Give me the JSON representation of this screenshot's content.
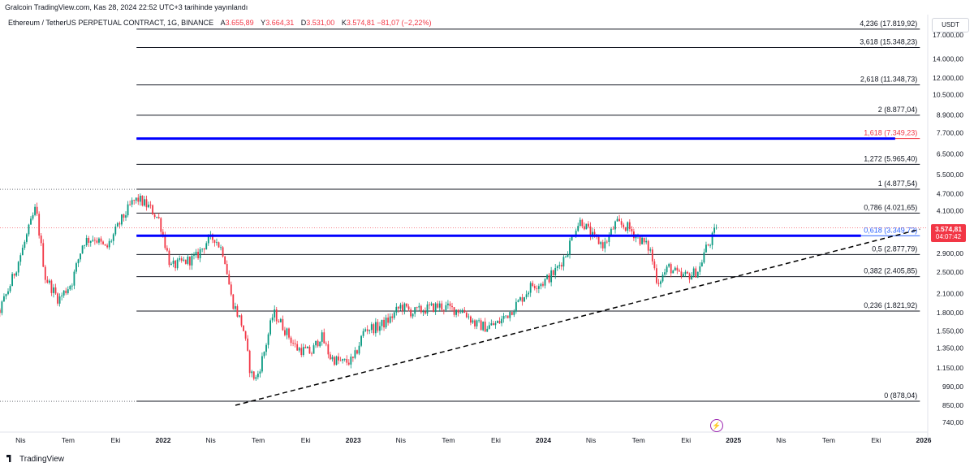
{
  "header": {
    "published": "Gralcoin TradingView.com, Kas 28, 2024 22:52 UTC+3 tarihinde yayınlandı"
  },
  "legend": {
    "symbol": "Ethereum / TetherUS PERPETUAL CONTRACT, 1G, BINANCE",
    "open_label": "A",
    "open": "3.655,89",
    "high_label": "Y",
    "high": "3.664,31",
    "low_label": "D",
    "low": "3.531,00",
    "close_label": "K",
    "close": "3.574,81",
    "change": "−81,07 (−2,22%)"
  },
  "currency": "USDT",
  "last_price": {
    "value": "3.574,81",
    "countdown": "04:07:42",
    "color": "#f23645"
  },
  "footer": {
    "brand": "TradingView"
  },
  "colors": {
    "up": "#089981",
    "down": "#f23645",
    "level_line": "#131722",
    "blue_line": "#0000ff",
    "fib_1618": "#f23645",
    "fib_0618": "#2962ff"
  },
  "chart_data": {
    "type": "candlestick",
    "y_scale": "log",
    "y_ticks": [
      {
        "v": 17000,
        "label": "17.000,00"
      },
      {
        "v": 14000,
        "label": "14.000,00"
      },
      {
        "v": 12000,
        "label": "12.000,00"
      },
      {
        "v": 10500,
        "label": "10.500,00"
      },
      {
        "v": 8900,
        "label": "8.900,00"
      },
      {
        "v": 7700,
        "label": "7.700,00"
      },
      {
        "v": 6500,
        "label": "6.500,00"
      },
      {
        "v": 5500,
        "label": "5.500,00"
      },
      {
        "v": 4700,
        "label": "4.700,00"
      },
      {
        "v": 4100,
        "label": "4.100,00"
      },
      {
        "v": 2900,
        "label": "2.900,00"
      },
      {
        "v": 2500,
        "label": "2.500,00"
      },
      {
        "v": 2100,
        "label": "2.100,00"
      },
      {
        "v": 1800,
        "label": "1.800,00"
      },
      {
        "v": 1550,
        "label": "1.550,00"
      },
      {
        "v": 1350,
        "label": "1.350,00"
      },
      {
        "v": 1150,
        "label": "1.150,00"
      },
      {
        "v": 990,
        "label": "990,00"
      },
      {
        "v": 850,
        "label": "850,00"
      },
      {
        "v": 740,
        "label": "740,00"
      }
    ],
    "x_ticks": [
      {
        "label": "Nis",
        "year": 2021.25,
        "bold": false
      },
      {
        "label": "Tem",
        "year": 2021.5,
        "bold": false
      },
      {
        "label": "Eki",
        "year": 2021.75,
        "bold": false
      },
      {
        "label": "2022",
        "year": 2022.0,
        "bold": true
      },
      {
        "label": "Nis",
        "year": 2022.25,
        "bold": false
      },
      {
        "label": "Tem",
        "year": 2022.5,
        "bold": false
      },
      {
        "label": "Eki",
        "year": 2022.75,
        "bold": false
      },
      {
        "label": "2023",
        "year": 2023.0,
        "bold": true
      },
      {
        "label": "Nis",
        "year": 2023.25,
        "bold": false
      },
      {
        "label": "Tem",
        "year": 2023.5,
        "bold": false
      },
      {
        "label": "Eki",
        "year": 2023.75,
        "bold": false
      },
      {
        "label": "2024",
        "year": 2024.0,
        "bold": true
      },
      {
        "label": "Nis",
        "year": 2024.25,
        "bold": false
      },
      {
        "label": "Tem",
        "year": 2024.5,
        "bold": false
      },
      {
        "label": "Eki",
        "year": 2024.75,
        "bold": false
      },
      {
        "label": "2025",
        "year": 2025.0,
        "bold": true
      },
      {
        "label": "Nis",
        "year": 2025.25,
        "bold": false
      },
      {
        "label": "Tem",
        "year": 2025.5,
        "bold": false
      },
      {
        "label": "Eki",
        "year": 2025.75,
        "bold": false
      },
      {
        "label": "2026",
        "year": 2026.0,
        "bold": true
      }
    ],
    "fib_levels": [
      {
        "label": "4,236 (17.819,92)",
        "price": 17819.92,
        "color": "#131722"
      },
      {
        "label": "3,618 (15.348,23)",
        "price": 15348.23,
        "color": "#131722"
      },
      {
        "label": "2,618 (11.348,73)",
        "price": 11348.73,
        "color": "#131722"
      },
      {
        "label": "2 (8.877,04)",
        "price": 8877.04,
        "color": "#131722"
      },
      {
        "label": "1,618 (7.349,23)",
        "price": 7349.23,
        "color": "#f23645"
      },
      {
        "label": "1,272 (5.965,40)",
        "price": 5965.4,
        "color": "#131722"
      },
      {
        "label": "1 (4.877,54)",
        "price": 4877.54,
        "color": "#131722"
      },
      {
        "label": "0,786 (4.021,65)",
        "price": 4021.65,
        "color": "#131722"
      },
      {
        "label": "0,618 (3.349,73)",
        "price": 3349.73,
        "color": "#2962ff"
      },
      {
        "label": "0,5 (2.877,79)",
        "price": 2877.79,
        "color": "#131722"
      },
      {
        "label": "0,382 (2.405,85)",
        "price": 2405.85,
        "color": "#131722"
      },
      {
        "label": "0,236 (1.821,92)",
        "price": 1821.92,
        "color": "#131722"
      },
      {
        "label": "0 (878,04)",
        "price": 878.04,
        "color": "#131722"
      }
    ],
    "fib_start_year": 2021.86,
    "fib_end_year": 2025.98,
    "horizontal_lines": [
      {
        "price": 7349.23,
        "start_year": 2021.86,
        "end_year": 2025.85,
        "color": "#0000ff"
      },
      {
        "price": 3349.73,
        "start_year": 2021.86,
        "end_year": 2025.67,
        "color": "#0000ff"
      }
    ],
    "trendline": {
      "start": {
        "year": 2022.38,
        "price": 850
      },
      "end": {
        "year": 2025.98,
        "price": 3530
      },
      "style": "dashed"
    },
    "price_path": [
      [
        2021.0,
        1650
      ],
      [
        2021.06,
        1900
      ],
      [
        2021.12,
        1700
      ],
      [
        2021.19,
        2200
      ],
      [
        2021.26,
        3000
      ],
      [
        2021.33,
        4200
      ],
      [
        2021.38,
        2400
      ],
      [
        2021.45,
        2000
      ],
      [
        2021.52,
        2300
      ],
      [
        2021.58,
        3200
      ],
      [
        2021.64,
        3300
      ],
      [
        2021.7,
        3000
      ],
      [
        2021.78,
        3800
      ],
      [
        2021.84,
        4400
      ],
      [
        2021.87,
        4500
      ],
      [
        2021.93,
        4200
      ],
      [
        2021.98,
        3800
      ],
      [
        2022.04,
        2600
      ],
      [
        2022.1,
        2700
      ],
      [
        2022.17,
        2800
      ],
      [
        2022.23,
        3200
      ],
      [
        2022.27,
        3300
      ],
      [
        2022.32,
        2900
      ],
      [
        2022.36,
        2000
      ],
      [
        2022.42,
        1600
      ],
      [
        2022.46,
        1100
      ],
      [
        2022.49,
        1050
      ],
      [
        2022.53,
        1300
      ],
      [
        2022.58,
        1800
      ],
      [
        2022.62,
        1650
      ],
      [
        2022.7,
        1350
      ],
      [
        2022.78,
        1300
      ],
      [
        2022.83,
        1500
      ],
      [
        2022.88,
        1250
      ],
      [
        2022.94,
        1200
      ],
      [
        2023.0,
        1220
      ],
      [
        2023.06,
        1580
      ],
      [
        2023.13,
        1600
      ],
      [
        2023.19,
        1700
      ],
      [
        2023.25,
        1900
      ],
      [
        2023.31,
        1800
      ],
      [
        2023.38,
        1850
      ],
      [
        2023.45,
        1900
      ],
      [
        2023.52,
        1850
      ],
      [
        2023.58,
        1830
      ],
      [
        2023.64,
        1640
      ],
      [
        2023.7,
        1600
      ],
      [
        2023.76,
        1650
      ],
      [
        2023.82,
        1800
      ],
      [
        2023.88,
        2000
      ],
      [
        2023.94,
        2250
      ],
      [
        2024.0,
        2300
      ],
      [
        2024.06,
        2500
      ],
      [
        2024.12,
        2900
      ],
      [
        2024.17,
        3600
      ],
      [
        2024.2,
        3800
      ],
      [
        2024.26,
        3300
      ],
      [
        2024.32,
        3100
      ],
      [
        2024.38,
        3700
      ],
      [
        2024.44,
        3600
      ],
      [
        2024.5,
        3300
      ],
      [
        2024.56,
        3000
      ],
      [
        2024.6,
        2300
      ],
      [
        2024.66,
        2600
      ],
      [
        2024.72,
        2400
      ],
      [
        2024.78,
        2450
      ],
      [
        2024.82,
        2550
      ],
      [
        2024.85,
        3000
      ],
      [
        2024.88,
        3200
      ],
      [
        2024.91,
        3574.81
      ]
    ]
  }
}
